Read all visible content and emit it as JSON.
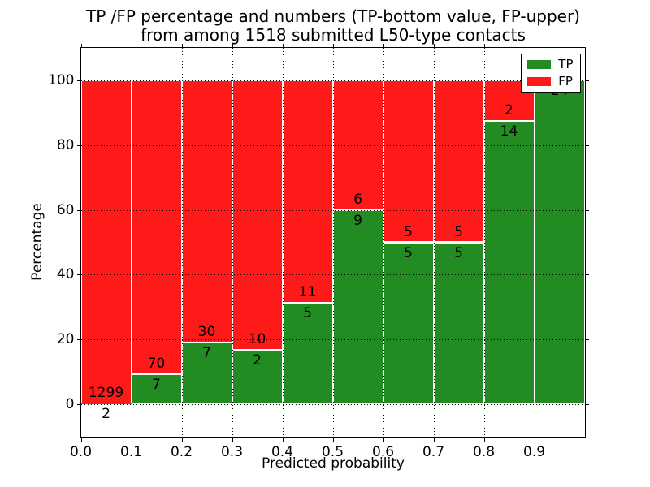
{
  "chart_data": {
    "type": "bar",
    "stacked": true,
    "orientation": "vertical",
    "title": "TP /FP percentage and numbers (TP-bottom value, FP-upper)",
    "subtitle": "from among 1518 submitted L50-type contacts",
    "xlabel": "Predicted probability",
    "ylabel": "Percentage",
    "bin_edges": [
      0.0,
      0.1,
      0.2,
      0.3,
      0.4,
      0.5,
      0.6,
      0.7,
      0.8,
      0.9,
      1.0
    ],
    "series": [
      {
        "name": "TP",
        "color": "#228B22",
        "values": [
          2,
          7,
          7,
          2,
          5,
          9,
          5,
          5,
          14,
          24
        ]
      },
      {
        "name": "FP",
        "color": "#FF1A1A",
        "values": [
          1299,
          70,
          30,
          10,
          11,
          6,
          5,
          5,
          2,
          0
        ]
      }
    ],
    "tp_percent": [
      0.15,
      9.09,
      18.92,
      16.67,
      31.25,
      60.0,
      50.0,
      50.0,
      87.5,
      100.0
    ],
    "x_ticks": [
      "0.0",
      "0.1",
      "0.2",
      "0.3",
      "0.4",
      "0.5",
      "0.6",
      "0.7",
      "0.8",
      "0.9"
    ],
    "y_ticks": [
      "0",
      "20",
      "40",
      "60",
      "80",
      "100"
    ],
    "xlim": [
      0.0,
      1.0
    ],
    "ylim": [
      -10.3,
      110.3
    ],
    "grid": "dotted",
    "grid_color": "#000000",
    "bar_edge_color": "#ffffff",
    "legend": {
      "position": "upper right",
      "entries": [
        {
          "label": "TP",
          "color": "#228B22"
        },
        {
          "label": "FP",
          "color": "#FF1A1A"
        }
      ]
    }
  }
}
